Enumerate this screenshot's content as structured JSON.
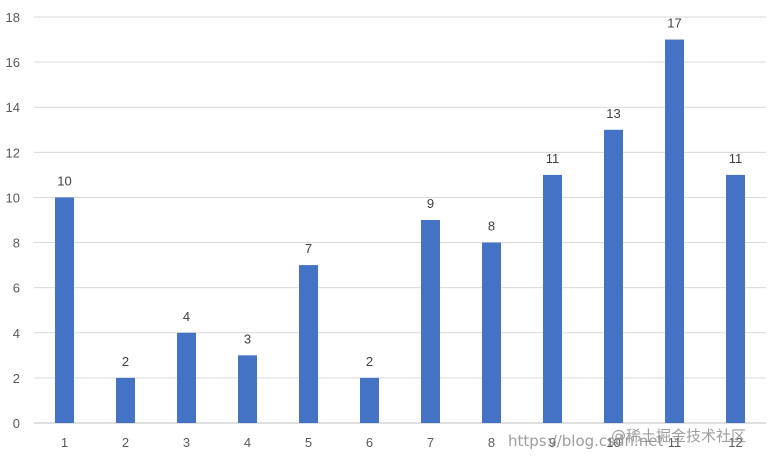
{
  "chart_data": {
    "type": "bar",
    "categories": [
      "1",
      "2",
      "3",
      "4",
      "5",
      "6",
      "7",
      "8",
      "9",
      "10",
      "11",
      "12"
    ],
    "values": [
      10,
      2,
      4,
      3,
      7,
      2,
      9,
      8,
      11,
      13,
      17,
      11
    ],
    "ylim": [
      0,
      18
    ],
    "yticks": [
      0,
      2,
      4,
      6,
      8,
      10,
      12,
      14,
      16,
      18
    ],
    "grid": "horizontal",
    "data_labels": true,
    "bar_color": "#4472C4",
    "title": "",
    "xlabel": "",
    "ylabel": ""
  },
  "watermark": {
    "url_text": "https://blog.csdn.net",
    "brand_text": "@稀土掘金技术社区"
  }
}
